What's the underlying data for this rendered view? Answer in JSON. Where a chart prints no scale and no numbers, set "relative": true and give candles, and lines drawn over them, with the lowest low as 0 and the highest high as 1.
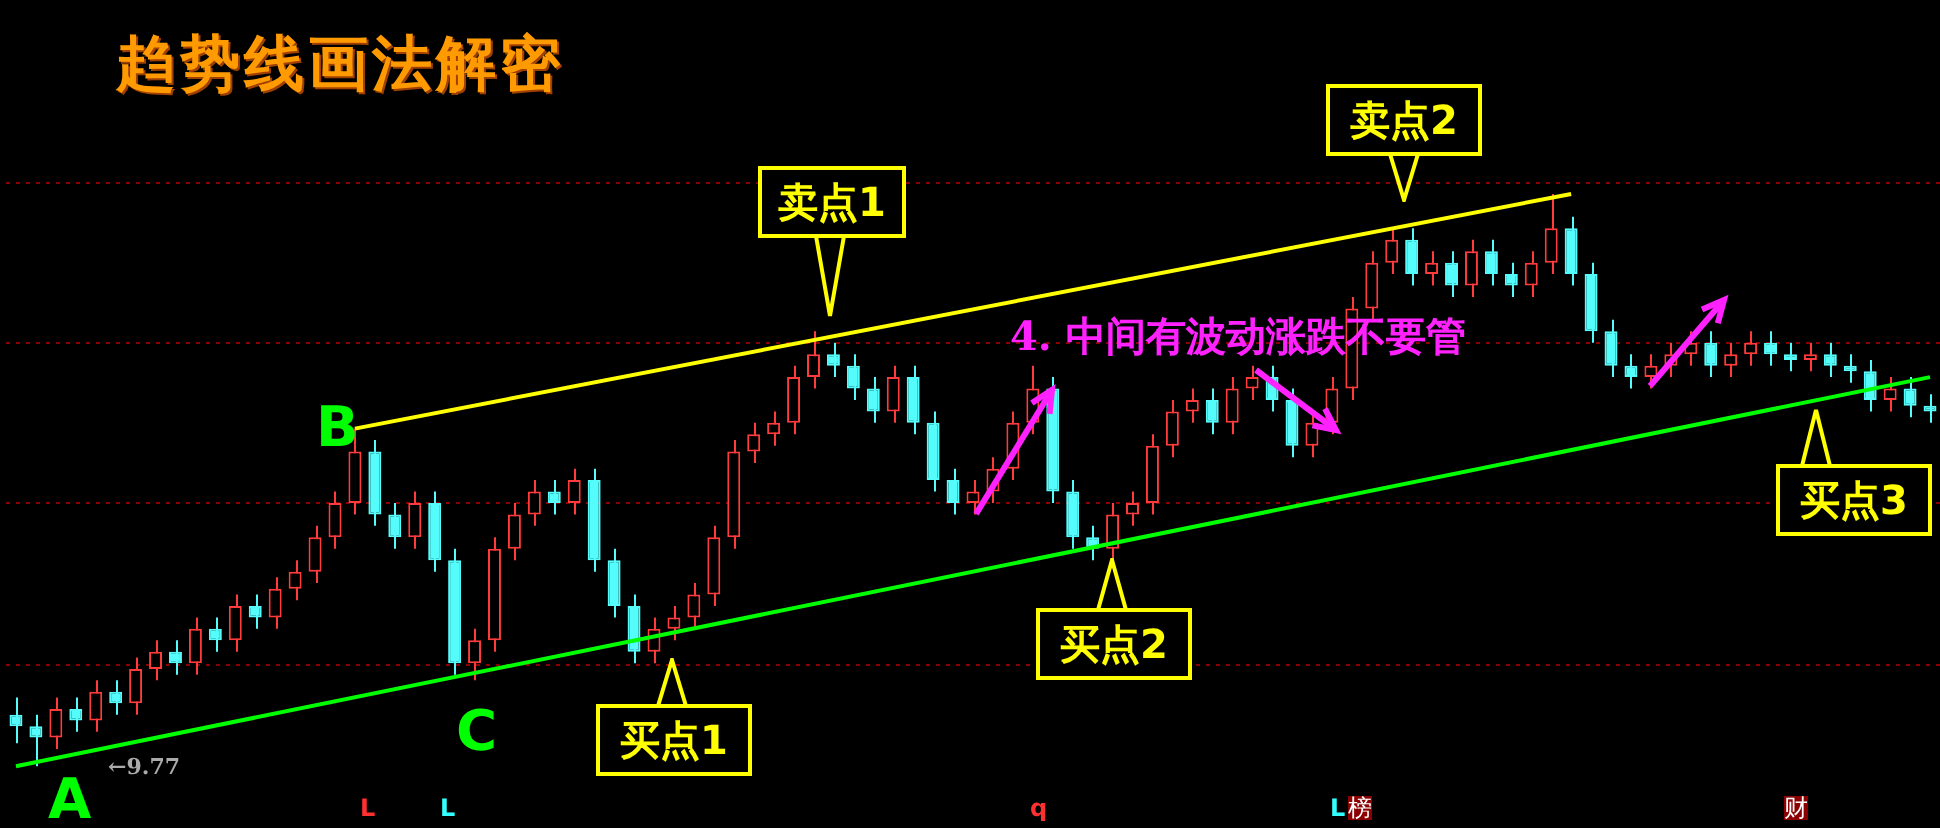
{
  "chart_data": {
    "type": "candlestick",
    "title": "趋势线画法解密",
    "relative": true,
    "legend": false,
    "ref_lines": [
      {
        "axis": "y",
        "value": 1.02,
        "color": "#8b0000",
        "line_style": "dotted"
      },
      {
        "axis": "y",
        "value": 0.74,
        "color": "#8b0000",
        "line_style": "dotted"
      },
      {
        "axis": "y",
        "value": 0.46,
        "color": "#8b0000",
        "line_style": "dotted"
      },
      {
        "axis": "y",
        "value": 0.18,
        "color": "#8b0000",
        "line_style": "dotted"
      }
    ],
    "categories": [
      null,
      null,
      null,
      null,
      null,
      null,
      null,
      null,
      null,
      null,
      null,
      null,
      null,
      null,
      null,
      null,
      null,
      null,
      null,
      null,
      null,
      null,
      null,
      null,
      null,
      null,
      null,
      null,
      null,
      null,
      null,
      null,
      null,
      null,
      null,
      null,
      null,
      null,
      null,
      null,
      null,
      null,
      null,
      null,
      null,
      null,
      null,
      null,
      null,
      null,
      null,
      null,
      null,
      null,
      null,
      null,
      null,
      null,
      null,
      null,
      null,
      null,
      null,
      null,
      null,
      null,
      null,
      null,
      null,
      null,
      null,
      null,
      null,
      null,
      null,
      null,
      null,
      null,
      null,
      null,
      null,
      null,
      null,
      null,
      null,
      null,
      null,
      null,
      null,
      null,
      null,
      null,
      null,
      null,
      null,
      null,
      null
    ],
    "ohlc": [
      [
        0.09,
        0.12,
        0.04,
        0.07
      ],
      [
        0.07,
        0.09,
        0,
        0.05
      ],
      [
        0.05,
        0.12,
        0.03,
        0.1
      ],
      [
        0.1,
        0.12,
        0.06,
        0.08
      ],
      [
        0.08,
        0.15,
        0.06,
        0.13
      ],
      [
        0.13,
        0.15,
        0.09,
        0.11
      ],
      [
        0.11,
        0.19,
        0.09,
        0.17
      ],
      [
        0.17,
        0.22,
        0.15,
        0.2
      ],
      [
        0.2,
        0.22,
        0.16,
        0.18
      ],
      [
        0.18,
        0.26,
        0.16,
        0.24
      ],
      [
        0.24,
        0.26,
        0.2,
        0.22
      ],
      [
        0.22,
        0.3,
        0.2,
        0.28
      ],
      [
        0.28,
        0.3,
        0.24,
        0.26
      ],
      [
        0.26,
        0.33,
        0.24,
        0.31
      ],
      [
        0.31,
        0.36,
        0.29,
        0.34
      ],
      [
        0.34,
        0.42,
        0.32,
        0.4
      ],
      [
        0.4,
        0.48,
        0.38,
        0.46
      ],
      [
        0.46,
        0.59,
        0.44,
        0.55
      ],
      [
        0.55,
        0.57,
        0.42,
        0.44
      ],
      [
        0.44,
        0.46,
        0.38,
        0.4
      ],
      [
        0.4,
        0.48,
        0.38,
        0.46
      ],
      [
        0.46,
        0.48,
        0.34,
        0.36
      ],
      [
        0.36,
        0.38,
        0.16,
        0.18
      ],
      [
        0.18,
        0.24,
        0.15,
        0.22
      ],
      [
        0.22,
        0.4,
        0.2,
        0.38
      ],
      [
        0.38,
        0.46,
        0.36,
        0.44
      ],
      [
        0.44,
        0.5,
        0.42,
        0.48
      ],
      [
        0.48,
        0.5,
        0.44,
        0.46
      ],
      [
        0.46,
        0.52,
        0.44,
        0.5
      ],
      [
        0.5,
        0.52,
        0.34,
        0.36
      ],
      [
        0.36,
        0.38,
        0.26,
        0.28
      ],
      [
        0.28,
        0.3,
        0.18,
        0.2
      ],
      [
        0.2,
        0.26,
        0.18,
        0.24
      ],
      [
        0.24,
        0.28,
        0.22,
        0.26
      ],
      [
        0.26,
        0.32,
        0.24,
        0.3
      ],
      [
        0.3,
        0.42,
        0.28,
        0.4
      ],
      [
        0.4,
        0.57,
        0.38,
        0.55
      ],
      [
        0.55,
        0.6,
        0.53,
        0.58
      ],
      [
        0.58,
        0.62,
        0.56,
        0.6
      ],
      [
        0.6,
        0.7,
        0.58,
        0.68
      ],
      [
        0.68,
        0.76,
        0.66,
        0.72
      ],
      [
        0.72,
        0.74,
        0.68,
        0.7
      ],
      [
        0.7,
        0.72,
        0.64,
        0.66
      ],
      [
        0.66,
        0.68,
        0.6,
        0.62
      ],
      [
        0.62,
        0.7,
        0.6,
        0.68
      ],
      [
        0.68,
        0.7,
        0.58,
        0.6
      ],
      [
        0.6,
        0.62,
        0.48,
        0.5
      ],
      [
        0.5,
        0.52,
        0.44,
        0.46
      ],
      [
        0.46,
        0.5,
        0.44,
        0.48
      ],
      [
        0.48,
        0.54,
        0.46,
        0.52
      ],
      [
        0.52,
        0.62,
        0.5,
        0.6
      ],
      [
        0.6,
        0.7,
        0.58,
        0.66
      ],
      [
        0.66,
        0.68,
        0.46,
        0.48
      ],
      [
        0.48,
        0.5,
        0.38,
        0.4
      ],
      [
        0.4,
        0.42,
        0.36,
        0.38
      ],
      [
        0.38,
        0.46,
        0.36,
        0.44
      ],
      [
        0.44,
        0.48,
        0.42,
        0.46
      ],
      [
        0.46,
        0.58,
        0.44,
        0.56
      ],
      [
        0.56,
        0.64,
        0.54,
        0.62
      ],
      [
        0.62,
        0.66,
        0.6,
        0.64
      ],
      [
        0.64,
        0.66,
        0.58,
        0.6
      ],
      [
        0.6,
        0.68,
        0.58,
        0.66
      ],
      [
        0.66,
        0.7,
        0.64,
        0.68
      ],
      [
        0.68,
        0.7,
        0.62,
        0.64
      ],
      [
        0.64,
        0.66,
        0.54,
        0.56
      ],
      [
        0.56,
        0.62,
        0.54,
        0.6
      ],
      [
        0.6,
        0.68,
        0.58,
        0.66
      ],
      [
        0.66,
        0.82,
        0.64,
        0.8
      ],
      [
        0.8,
        0.9,
        0.78,
        0.88
      ],
      [
        0.88,
        0.94,
        0.86,
        0.92
      ],
      [
        0.92,
        0.94,
        0.84,
        0.86
      ],
      [
        0.86,
        0.9,
        0.84,
        0.88
      ],
      [
        0.88,
        0.9,
        0.82,
        0.84
      ],
      [
        0.84,
        0.92,
        0.82,
        0.9
      ],
      [
        0.9,
        0.92,
        0.84,
        0.86
      ],
      [
        0.86,
        0.88,
        0.82,
        0.84
      ],
      [
        0.84,
        0.9,
        0.82,
        0.88
      ],
      [
        0.88,
        1,
        0.86,
        0.94
      ],
      [
        0.94,
        0.96,
        0.84,
        0.86
      ],
      [
        0.86,
        0.88,
        0.74,
        0.76
      ],
      [
        0.76,
        0.78,
        0.68,
        0.7
      ],
      [
        0.7,
        0.72,
        0.66,
        0.68
      ],
      [
        0.68,
        0.72,
        0.66,
        0.7
      ],
      [
        0.7,
        0.74,
        0.68,
        0.72
      ],
      [
        0.72,
        0.76,
        0.7,
        0.74
      ],
      [
        0.74,
        0.76,
        0.68,
        0.7
      ],
      [
        0.7,
        0.74,
        0.68,
        0.72
      ],
      [
        0.72,
        0.76,
        0.7,
        0.74
      ],
      [
        0.74,
        0.76,
        0.7,
        0.72
      ],
      [
        0.72,
        0.74,
        0.69,
        0.71
      ],
      [
        0.71,
        0.74,
        0.69,
        0.72
      ],
      [
        0.72,
        0.74,
        0.68,
        0.7
      ],
      [
        0.7,
        0.72,
        0.67,
        0.69
      ],
      [
        0.69,
        0.71,
        0.62,
        0.64
      ],
      [
        0.64,
        0.68,
        0.62,
        0.66
      ],
      [
        0.66,
        0.68,
        0.61,
        0.63
      ],
      [
        0.63,
        0.65,
        0.6,
        0.62
      ]
    ],
    "series": [
      {
        "type": "line",
        "color": "#ffff00",
        "values": [
          null,
          null,
          null,
          null,
          null,
          null,
          null,
          null,
          null,
          null,
          null,
          null,
          null,
          null,
          null,
          null,
          null,
          0.59,
          null,
          null,
          null,
          null,
          null,
          null,
          null,
          null,
          null,
          null,
          null,
          null,
          null,
          null,
          null,
          null,
          null,
          null,
          null,
          null,
          null,
          null,
          null,
          null,
          null,
          null,
          null,
          null,
          null,
          null,
          null,
          null,
          null,
          null,
          null,
          null,
          null,
          null,
          null,
          null,
          null,
          null,
          null,
          null,
          null,
          null,
          null,
          null,
          null,
          null,
          null,
          null,
          null,
          null,
          null,
          null,
          null,
          null,
          null,
          null,
          1,
          null,
          null,
          null,
          null,
          null,
          null,
          null,
          null,
          null,
          null,
          null,
          null,
          null,
          null,
          null,
          null,
          null,
          null
        ]
      },
      {
        "type": "line",
        "color": "#00ff00",
        "values": [
          0,
          null,
          null,
          null,
          null,
          null,
          null,
          null,
          null,
          null,
          null,
          null,
          null,
          null,
          null,
          null,
          null,
          null,
          null,
          null,
          null,
          null,
          null,
          null,
          null,
          null,
          null,
          null,
          null,
          null,
          null,
          null,
          null,
          null,
          null,
          null,
          null,
          null,
          null,
          null,
          null,
          null,
          null,
          null,
          null,
          null,
          null,
          null,
          null,
          null,
          null,
          null,
          null,
          null,
          null,
          null,
          null,
          null,
          null,
          null,
          null,
          null,
          null,
          null,
          null,
          null,
          null,
          null,
          null,
          null,
          null,
          null,
          null,
          null,
          null,
          null,
          null,
          null,
          null,
          null,
          null,
          null,
          null,
          null,
          null,
          null,
          null,
          null,
          null,
          null,
          null,
          null,
          null,
          null,
          null,
          null,
          0.68
        ]
      }
    ],
    "annotations": [
      "B",
      "C",
      "A",
      "卖点1",
      "卖点2",
      "买点1",
      "买点2",
      "买点3",
      "4. 中间有波动涨跌不要管",
      "←9.77",
      "L",
      "L",
      "q",
      "L",
      "榜",
      "财"
    ]
  }
}
